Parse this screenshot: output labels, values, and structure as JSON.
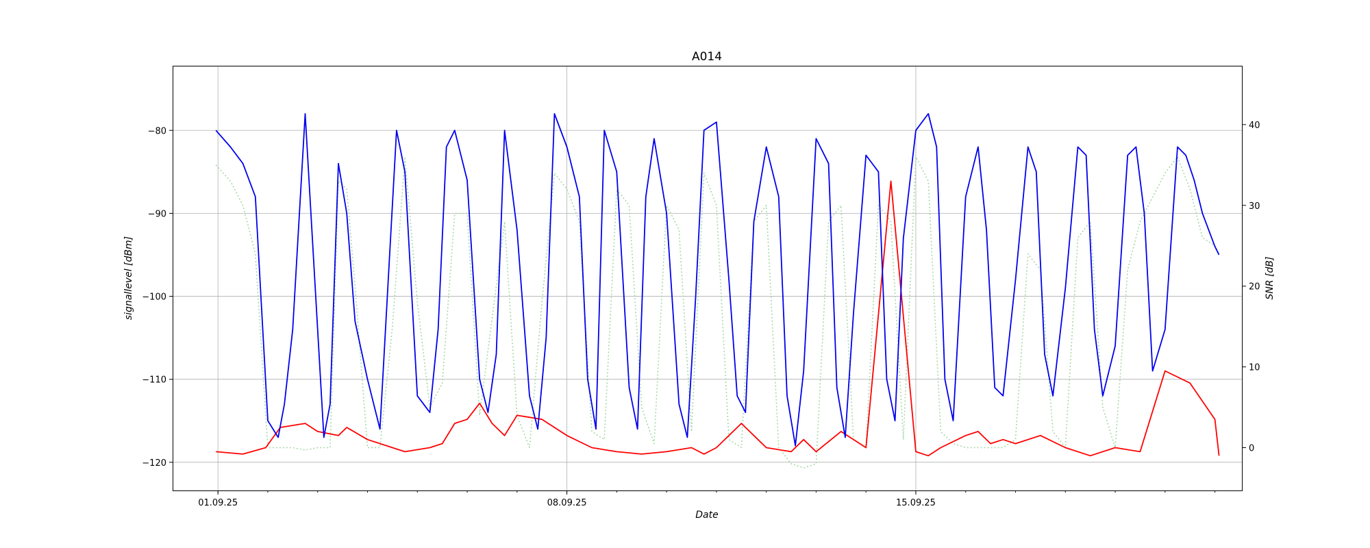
{
  "chart_data": {
    "type": "line",
    "title": "A014",
    "xlabel": "Date",
    "ylabel": "signallevel [dBm]",
    "y2label": "SNR [dB]",
    "grid": true,
    "xlim": [
      "2025-08-31T02:30",
      "2025-09-21T13:00"
    ],
    "x_major_ticks": [
      "2025-09-01",
      "2025-09-08",
      "2025-09-15"
    ],
    "x_tick_labels": [
      "01.09.25",
      "08.09.25",
      "15.09.25"
    ],
    "ylim": [
      -123.4,
      -72.3
    ],
    "yticks": [
      -120,
      -110,
      -100,
      -90,
      -80
    ],
    "y2lim": [
      -5.3,
      47.2
    ],
    "y2ticks": [
      0,
      10,
      20,
      30,
      40
    ],
    "series": [
      {
        "axis": "left",
        "color": "#0000ee",
        "style": "solid",
        "x": [
          "2025-08-31T23:00",
          "2025-09-01T06:00",
          "2025-09-01T12:00",
          "2025-09-01T18:00",
          "2025-09-02T00:00",
          "2025-09-02T05:00",
          "2025-09-02T08:00",
          "2025-09-02T12:00",
          "2025-09-02T18:00",
          "2025-09-03T00:00",
          "2025-09-03T03:00",
          "2025-09-03T06:00",
          "2025-09-03T10:00",
          "2025-09-03T14:00",
          "2025-09-03T18:00",
          "2025-09-04T00:00",
          "2025-09-04T06:00",
          "2025-09-04T10:00",
          "2025-09-04T14:00",
          "2025-09-04T18:00",
          "2025-09-05T00:00",
          "2025-09-05T06:00",
          "2025-09-05T10:00",
          "2025-09-05T14:00",
          "2025-09-05T18:00",
          "2025-09-06T00:00",
          "2025-09-06T06:00",
          "2025-09-06T10:00",
          "2025-09-06T14:00",
          "2025-09-06T18:00",
          "2025-09-07T00:00",
          "2025-09-07T06:00",
          "2025-09-07T10:00",
          "2025-09-07T14:00",
          "2025-09-07T18:00",
          "2025-09-08T00:00",
          "2025-09-08T06:00",
          "2025-09-08T10:00",
          "2025-09-08T14:00",
          "2025-09-08T18:00",
          "2025-09-09T00:00",
          "2025-09-09T06:00",
          "2025-09-09T10:00",
          "2025-09-09T14:00",
          "2025-09-09T18:00",
          "2025-09-10T00:00",
          "2025-09-10T06:00",
          "2025-09-10T10:00",
          "2025-09-10T14:00",
          "2025-09-10T18:00",
          "2025-09-11T00:00",
          "2025-09-11T06:00",
          "2025-09-11T10:00",
          "2025-09-11T14:00",
          "2025-09-11T18:00",
          "2025-09-12T00:00",
          "2025-09-12T06:00",
          "2025-09-12T10:00",
          "2025-09-12T14:00",
          "2025-09-12T18:00",
          "2025-09-13T00:00",
          "2025-09-13T06:00",
          "2025-09-13T10:00",
          "2025-09-13T14:00",
          "2025-09-13T18:00",
          "2025-09-14T00:00",
          "2025-09-14T06:00",
          "2025-09-14T10:00",
          "2025-09-14T14:00",
          "2025-09-14T18:00",
          "2025-09-15T00:00",
          "2025-09-15T06:00",
          "2025-09-15T10:00",
          "2025-09-15T14:00",
          "2025-09-15T18:00",
          "2025-09-16T00:00",
          "2025-09-16T06:00",
          "2025-09-16T10:00",
          "2025-09-16T14:00",
          "2025-09-16T18:00",
          "2025-09-17T00:00",
          "2025-09-17T06:00",
          "2025-09-17T10:00",
          "2025-09-17T14:00",
          "2025-09-17T18:00",
          "2025-09-18T00:00",
          "2025-09-18T06:00",
          "2025-09-18T10:00",
          "2025-09-18T14:00",
          "2025-09-18T18:00",
          "2025-09-19T00:00",
          "2025-09-19T06:00",
          "2025-09-19T10:00",
          "2025-09-19T14:00",
          "2025-09-19T18:00",
          "2025-09-20T00:00",
          "2025-09-20T06:00",
          "2025-09-20T10:00",
          "2025-09-20T14:00",
          "2025-09-20T18:00",
          "2025-09-21T00:00",
          "2025-09-21T02:00"
        ],
        "values": [
          -80,
          -82,
          -84,
          -88,
          -115,
          -117,
          -113,
          -104,
          -78,
          -104,
          -117,
          -113,
          -84,
          -90,
          -103,
          -110,
          -116,
          -98,
          -80,
          -85,
          -112,
          -114,
          -104,
          -82,
          -80,
          -86,
          -110,
          -114,
          -107,
          -80,
          -92,
          -112,
          -116,
          -105,
          -78,
          -82,
          -88,
          -110,
          -116,
          -80,
          -85,
          -111,
          -116,
          -88,
          -81,
          -90,
          -113,
          -117,
          -100,
          -80,
          -79,
          -98,
          -112,
          -114,
          -91,
          -82,
          -88,
          -112,
          -118,
          -109,
          -81,
          -84,
          -111,
          -117,
          -102,
          -83,
          -85,
          -110,
          -115,
          -93,
          -80,
          -78,
          -82,
          -110,
          -115,
          -88,
          -82,
          -92,
          -111,
          -112,
          -98,
          -82,
          -85,
          -107,
          -112,
          -99,
          -82,
          -83,
          -104,
          -112,
          -106,
          -83,
          -82,
          -90,
          -109,
          -104,
          -82,
          -83,
          -86,
          -90,
          -94,
          -95
        ]
      },
      {
        "axis": "right",
        "color": "#ff0000",
        "style": "solid",
        "x": [
          "2025-08-31T23:00",
          "2025-09-01T12:00",
          "2025-09-01T23:00",
          "2025-09-02T06:00",
          "2025-09-02T18:00",
          "2025-09-03T00:00",
          "2025-09-03T10:00",
          "2025-09-03T14:00",
          "2025-09-04T00:00",
          "2025-09-04T12:00",
          "2025-09-04T18:00",
          "2025-09-05T06:00",
          "2025-09-05T12:00",
          "2025-09-05T18:00",
          "2025-09-06T00:00",
          "2025-09-06T06:00",
          "2025-09-06T12:00",
          "2025-09-06T18:00",
          "2025-09-07T00:00",
          "2025-09-07T12:00",
          "2025-09-08T00:00",
          "2025-09-08T12:00",
          "2025-09-09T00:00",
          "2025-09-09T12:00",
          "2025-09-10T00:00",
          "2025-09-10T12:00",
          "2025-09-10T18:00",
          "2025-09-11T00:00",
          "2025-09-11T12:00",
          "2025-09-11T18:00",
          "2025-09-12T00:00",
          "2025-09-12T12:00",
          "2025-09-12T18:00",
          "2025-09-13T00:00",
          "2025-09-13T12:00",
          "2025-09-14T00:00",
          "2025-09-14T12:00",
          "2025-09-15T00:00",
          "2025-09-15T06:00",
          "2025-09-15T12:00",
          "2025-09-16T00:00",
          "2025-09-16T06:00",
          "2025-09-16T12:00",
          "2025-09-16T18:00",
          "2025-09-17T00:00",
          "2025-09-17T12:00",
          "2025-09-18T00:00",
          "2025-09-18T12:00",
          "2025-09-19T00:00",
          "2025-09-19T12:00",
          "2025-09-20T00:00",
          "2025-09-20T12:00",
          "2025-09-21T00:00",
          "2025-09-21T02:00"
        ],
        "values": [
          -0.5,
          -0.8,
          0,
          2.5,
          3,
          2,
          1.5,
          2.5,
          1,
          0,
          -0.5,
          0,
          0.5,
          3,
          3.5,
          5.5,
          3,
          1.5,
          4,
          3.5,
          1.5,
          0,
          -0.5,
          -0.8,
          -0.5,
          0,
          -0.8,
          0,
          3,
          1.5,
          0,
          -0.5,
          1,
          -0.5,
          2,
          0,
          33,
          -0.5,
          -1,
          0,
          1.5,
          2,
          0.5,
          1,
          0.5,
          1.5,
          0,
          -1,
          0,
          -0.5,
          9.5,
          8,
          3.5,
          -1
        ]
      },
      {
        "axis": "right",
        "color": "#a6d8a6",
        "style": "dotted",
        "x": [
          "2025-08-31T23:00",
          "2025-09-01T06:00",
          "2025-09-01T12:00",
          "2025-09-01T18:00",
          "2025-09-02T00:00",
          "2025-09-02T06:00",
          "2025-09-02T12:00",
          "2025-09-02T18:00",
          "2025-09-03T00:00",
          "2025-09-03T06:00",
          "2025-09-03T10:00",
          "2025-09-03T14:00",
          "2025-09-03T18:00",
          "2025-09-04T00:00",
          "2025-09-04T06:00",
          "2025-09-04T12:00",
          "2025-09-04T18:00",
          "2025-09-05T00:00",
          "2025-09-05T06:00",
          "2025-09-05T12:00",
          "2025-09-05T18:00",
          "2025-09-06T00:00",
          "2025-09-06T06:00",
          "2025-09-06T12:00",
          "2025-09-06T18:00",
          "2025-09-07T00:00",
          "2025-09-07T06:00",
          "2025-09-07T12:00",
          "2025-09-07T18:00",
          "2025-09-08T00:00",
          "2025-09-08T06:00",
          "2025-09-08T12:00",
          "2025-09-08T18:00",
          "2025-09-09T00:00",
          "2025-09-09T06:00",
          "2025-09-09T12:00",
          "2025-09-09T18:00",
          "2025-09-10T00:00",
          "2025-09-10T06:00",
          "2025-09-10T12:00",
          "2025-09-10T18:00",
          "2025-09-11T00:00",
          "2025-09-11T06:00",
          "2025-09-11T12:00",
          "2025-09-11T18:00",
          "2025-09-12T00:00",
          "2025-09-12T06:00",
          "2025-09-12T12:00",
          "2025-09-12T18:00",
          "2025-09-13T00:00",
          "2025-09-13T06:00",
          "2025-09-13T12:00",
          "2025-09-13T18:00",
          "2025-09-14T00:00",
          "2025-09-14T06:00",
          "2025-09-14T12:00",
          "2025-09-14T18:00",
          "2025-09-15T00:00",
          "2025-09-15T06:00",
          "2025-09-15T12:00",
          "2025-09-15T18:00",
          "2025-09-16T00:00",
          "2025-09-16T06:00",
          "2025-09-16T12:00",
          "2025-09-16T18:00",
          "2025-09-17T00:00",
          "2025-09-17T06:00",
          "2025-09-17T12:00",
          "2025-09-17T18:00",
          "2025-09-18T00:00",
          "2025-09-18T06:00",
          "2025-09-18T12:00",
          "2025-09-18T18:00",
          "2025-09-19T00:00",
          "2025-09-19T06:00",
          "2025-09-19T12:00",
          "2025-09-19T18:00",
          "2025-09-20T00:00",
          "2025-09-20T06:00",
          "2025-09-20T12:00",
          "2025-09-20T18:00",
          "2025-09-21T00:00",
          "2025-09-21T02:00"
        ],
        "values": [
          35,
          33,
          30,
          24,
          0,
          0,
          0,
          -0.3,
          0,
          0,
          33,
          32,
          20,
          0,
          0,
          15,
          36,
          18,
          5,
          8,
          29,
          29,
          4,
          16,
          28,
          4,
          0,
          18,
          34,
          32,
          28,
          2,
          1,
          32,
          30,
          5,
          0.5,
          30,
          27,
          2,
          34,
          30,
          1,
          0,
          28,
          30,
          0,
          -2,
          -2.5,
          -2,
          28,
          30,
          1,
          0,
          30,
          28,
          1,
          36,
          33,
          2,
          0.5,
          0,
          0,
          0,
          0,
          1,
          24,
          22,
          2,
          0,
          26,
          28,
          5,
          0,
          22,
          28,
          31,
          34,
          36,
          32,
          26,
          25,
          24
        ]
      }
    ]
  }
}
